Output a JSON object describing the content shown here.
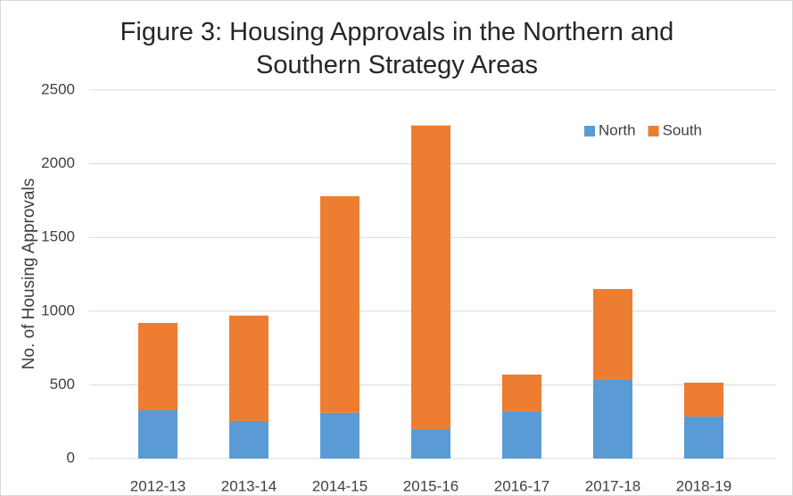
{
  "chart_data": {
    "type": "stacked_bar",
    "title": "Figure 3: Housing Approvals in the Northern and Southern Strategy Areas",
    "y_label": "No. of Housing Approvals",
    "categories": [
      "2012-13",
      "2013-14",
      "2014-15",
      "2015-16",
      "2016-17",
      "2017-18",
      "2018-19"
    ],
    "series": [
      {
        "name": "North",
        "color": "#5b9bd5",
        "values": [
          330,
          255,
          310,
          200,
          320,
          535,
          285
        ]
      },
      {
        "name": "South",
        "color": "#ed7d31",
        "values": [
          590,
          715,
          1470,
          2060,
          250,
          615,
          230
        ]
      }
    ],
    "ylim": [
      0,
      2500
    ],
    "yticks": [
      0,
      500,
      1000,
      1500,
      2000,
      2500
    ],
    "grid": true,
    "legend": "upper right"
  }
}
